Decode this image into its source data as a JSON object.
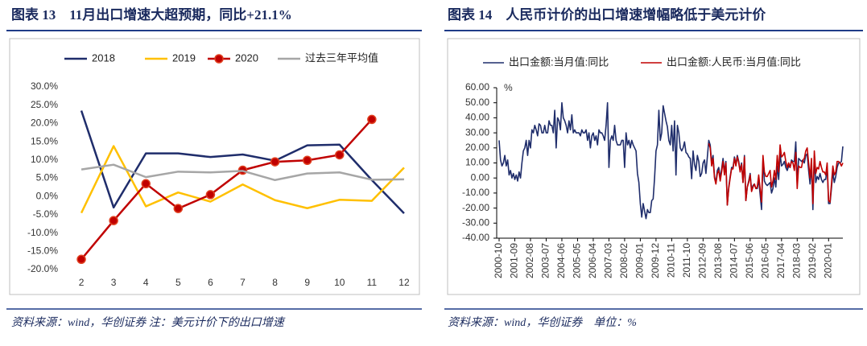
{
  "chart_data": [
    {
      "type": "line",
      "title": "图表 13　11月出口增速大超预期，同比+21.1%",
      "source": "资料来源：wind，华创证券 注：美元计价下的出口增速",
      "categories": [
        2,
        3,
        4,
        5,
        6,
        7,
        8,
        9,
        10,
        11,
        12
      ],
      "series": [
        {
          "name": "2018",
          "color": "#1f2d6b",
          "values": [
            23.5,
            -3,
            11.8,
            11.8,
            10.8,
            11.5,
            9.8,
            14,
            14.2,
            4.5,
            -4.6
          ]
        },
        {
          "name": "2019",
          "color": "#ffc000",
          "values": [
            -4.5,
            13.8,
            -2.7,
            1.1,
            -1.4,
            3.3,
            -1,
            -3.2,
            -0.9,
            -1.2,
            7.9
          ]
        },
        {
          "name": "2020",
          "color": "#c00000",
          "marker": true,
          "values": [
            -17.2,
            -6.6,
            3.5,
            -3.3,
            0.5,
            7.2,
            9.5,
            9.9,
            11.4,
            21.1,
            null
          ]
        },
        {
          "name": "过去三年平均值",
          "color": "#a6a6a6",
          "values": [
            7.4,
            8.7,
            5.3,
            6.8,
            6.6,
            7,
            4.5,
            6.3,
            6.6,
            4.6,
            4.7
          ]
        }
      ],
      "ylim": [
        -20,
        30
      ],
      "yticks": [
        {
          "value": -20,
          "label": "-20.0%"
        },
        {
          "value": -15,
          "label": "-15.0%"
        },
        {
          "value": -10,
          "label": "-10.0%"
        },
        {
          "value": -5,
          "label": "-5.0%"
        },
        {
          "value": 0,
          "label": "0.0%"
        },
        {
          "value": 5,
          "label": "5.0%"
        },
        {
          "value": 10,
          "label": "10.0%"
        },
        {
          "value": 15,
          "label": "15.0%"
        },
        {
          "value": 20,
          "label": "20.0%"
        },
        {
          "value": 25,
          "label": "25.0%"
        },
        {
          "value": 30,
          "label": "30.0%"
        }
      ],
      "grid": false
    },
    {
      "type": "line",
      "title": "图表 14　人民币计价的出口增速增幅略低于美元计价",
      "source": "资料来源：wind，华创证券　单位：%",
      "y_unit": "%",
      "categories": [
        "2000-10",
        null,
        null,
        null,
        null,
        null,
        null,
        null,
        null,
        null,
        null,
        "2001-09",
        null,
        null,
        null,
        null,
        null,
        null,
        null,
        null,
        null,
        null,
        "2002-08",
        null,
        null,
        null,
        null,
        null,
        null,
        null,
        null,
        null,
        null,
        "2003-07",
        null,
        null,
        null,
        null,
        null,
        null,
        null,
        null,
        null,
        null,
        "2004-06",
        null,
        null,
        null,
        null,
        null,
        null,
        null,
        null,
        null,
        null,
        "2005-05",
        null,
        null,
        null,
        null,
        null,
        null,
        null,
        null,
        null,
        null,
        "2006-04",
        null,
        null,
        null,
        null,
        null,
        null,
        null,
        null,
        null,
        null,
        "2007-03",
        null,
        null,
        null,
        null,
        null,
        null,
        null,
        null,
        null,
        null,
        "2008-02",
        null,
        null,
        null,
        null,
        null,
        null,
        null,
        null,
        null,
        null,
        "2009-01",
        null,
        null,
        null,
        null,
        null,
        null,
        null,
        null,
        null,
        null,
        "2009-12",
        null,
        null,
        null,
        null,
        null,
        null,
        null,
        null,
        null,
        null,
        "2010-11",
        null,
        null,
        null,
        null,
        null,
        null,
        null,
        null,
        null,
        null,
        "2011-10",
        null,
        null,
        null,
        null,
        null,
        null,
        null,
        null,
        null,
        null,
        "2012-09",
        null,
        null,
        null,
        null,
        null,
        null,
        null,
        null,
        null,
        null,
        "2013-08",
        null,
        null,
        null,
        null,
        null,
        null,
        null,
        null,
        null,
        null,
        "2014-07",
        null,
        null,
        null,
        null,
        null,
        null,
        null,
        null,
        null,
        null,
        "2015-06",
        null,
        null,
        null,
        null,
        null,
        null,
        null,
        null,
        null,
        null,
        "2016-05",
        null,
        null,
        null,
        null,
        null,
        null,
        null,
        null,
        null,
        null,
        "2017-04",
        null,
        null,
        null,
        null,
        null,
        null,
        null,
        null,
        null,
        null,
        "2018-03",
        null,
        null,
        null,
        null,
        null,
        null,
        null,
        null,
        null,
        null,
        "2019-02",
        null,
        null,
        null,
        null,
        null,
        null,
        null,
        null,
        null,
        null,
        "2020-01",
        null,
        null,
        null,
        null,
        null,
        null,
        null,
        null,
        null,
        null
      ],
      "series": [
        {
          "name": "出口金额:当月值:同比",
          "color": "#1f2d6b",
          "values": [
            25,
            12,
            8,
            10,
            15,
            8,
            12,
            2,
            5,
            0,
            3,
            -1,
            2,
            -2,
            4,
            0,
            10,
            18,
            20,
            25,
            15,
            25,
            20,
            32,
            30,
            35,
            32,
            28,
            36,
            35,
            30,
            30,
            35,
            30,
            30,
            38,
            35,
            35,
            30,
            45,
            20,
            40,
            38,
            32,
            50,
            40,
            38,
            35,
            30,
            38,
            32,
            42,
            30,
            32,
            30,
            30,
            30,
            28,
            32,
            30,
            30,
            32,
            25,
            30,
            20,
            28,
            30,
            25,
            28,
            22,
            32,
            30,
            30,
            28,
            25,
            35,
            50,
            7,
            25,
            28,
            25,
            35,
            25,
            22,
            22,
            22,
            25,
            25,
            7,
            30,
            22,
            25,
            20,
            25,
            22,
            20,
            18,
            3,
            -3,
            -17,
            -26,
            -17,
            -22,
            -27,
            -21,
            -23,
            -23,
            -15,
            -14,
            0,
            18,
            22,
            45,
            25,
            30,
            48,
            43,
            38,
            34,
            25,
            22,
            35,
            18,
            38,
            2,
            35,
            30,
            20,
            18,
            20,
            24,
            17,
            16,
            14,
            13,
            -0.5,
            18,
            9,
            5,
            15,
            11,
            1,
            3,
            10,
            12,
            3,
            14,
            25,
            22,
            10,
            15,
            1,
            -3,
            5,
            7,
            0,
            6,
            13,
            4,
            11,
            -18,
            -6,
            1,
            7,
            7,
            14,
            9,
            15,
            11,
            5,
            10,
            -3,
            15,
            -15,
            -6,
            -2,
            3,
            -8,
            -5,
            -4,
            -7,
            -7,
            -1,
            -11,
            -21,
            12,
            -2,
            -4,
            -5,
            -4,
            -3,
            -10,
            -7,
            0,
            -6,
            8,
            -1,
            16,
            8,
            9,
            11,
            7,
            5,
            8,
            7,
            12,
            11,
            11,
            24,
            -3,
            13,
            12,
            11,
            12,
            10,
            15,
            16,
            5,
            -4,
            9,
            -21,
            14,
            -3,
            1,
            -1,
            3,
            -1,
            -3,
            -1,
            -1,
            8,
            -17,
            -17,
            -7,
            4,
            -3,
            1,
            7,
            10,
            10,
            11,
            21
          ]
        },
        {
          "name": "出口金额:人民币:当月值:同比",
          "color": "#c00000",
          "values": [
            null,
            null,
            null,
            null,
            null,
            null,
            null,
            null,
            null,
            null,
            null,
            null,
            null,
            null,
            null,
            null,
            null,
            null,
            null,
            null,
            null,
            null,
            null,
            null,
            null,
            null,
            null,
            null,
            null,
            null,
            null,
            null,
            null,
            null,
            null,
            null,
            null,
            null,
            null,
            null,
            null,
            null,
            null,
            null,
            null,
            null,
            null,
            null,
            null,
            null,
            null,
            null,
            null,
            null,
            null,
            null,
            null,
            null,
            null,
            null,
            null,
            null,
            null,
            null,
            null,
            null,
            null,
            null,
            null,
            null,
            null,
            null,
            null,
            null,
            null,
            null,
            null,
            null,
            null,
            null,
            null,
            null,
            null,
            null,
            null,
            null,
            null,
            null,
            null,
            null,
            null,
            null,
            null,
            null,
            null,
            null,
            null,
            null,
            null,
            null,
            null,
            null,
            null,
            null,
            null,
            null,
            null,
            null,
            null,
            null,
            null,
            null,
            null,
            null,
            null,
            null,
            null,
            null,
            null,
            null,
            null,
            null,
            null,
            null,
            null,
            null,
            null,
            null,
            null,
            null,
            null,
            null,
            null,
            null,
            null,
            null,
            null,
            null,
            null,
            null,
            null,
            null,
            null,
            null,
            null,
            null,
            null,
            23,
            20,
            8,
            13,
            0,
            -4,
            3,
            5,
            -2,
            4,
            11,
            2,
            10,
            -18,
            -7,
            0,
            6,
            6,
            13,
            8,
            14,
            10,
            4,
            9,
            -3,
            14,
            -15,
            -6,
            -3,
            2,
            -9,
            -6,
            -4,
            -7,
            -6,
            2,
            -7,
            -16,
            15,
            4,
            1,
            1,
            3,
            5,
            -6,
            -2,
            5,
            -1,
            15,
            4,
            22,
            14,
            15,
            17,
            11,
            7,
            10,
            7,
            11,
            10,
            5,
            17,
            -7,
            8,
            7,
            7,
            12,
            13,
            18,
            20,
            10,
            0,
            13,
            -17,
            18,
            3,
            7,
            6,
            11,
            7,
            4,
            4,
            2,
            10,
            -15,
            -16,
            -4,
            8,
            2,
            4,
            11,
            11,
            10,
            8,
            10
          ]
        }
      ],
      "ylim": [
        -40,
        60
      ],
      "yticks": [
        {
          "value": -40,
          "label": "-40.00"
        },
        {
          "value": -30,
          "label": "-30.00"
        },
        {
          "value": -20,
          "label": "-20.00"
        },
        {
          "value": -10,
          "label": "-10.00"
        },
        {
          "value": 0,
          "label": "0.00"
        },
        {
          "value": 10,
          "label": "10.00"
        },
        {
          "value": 20,
          "label": "20.00"
        },
        {
          "value": 30,
          "label": "30.00"
        },
        {
          "value": 40,
          "label": "40.00"
        },
        {
          "value": 50,
          "label": "50.00"
        },
        {
          "value": 60,
          "label": "60.00"
        }
      ],
      "grid": false
    }
  ]
}
